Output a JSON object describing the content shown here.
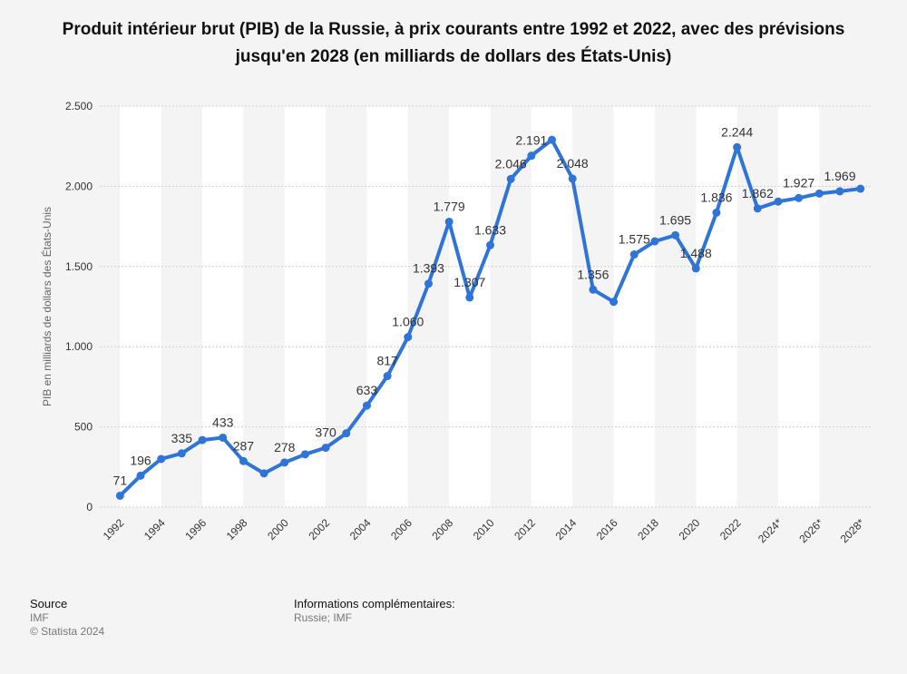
{
  "chart_data": {
    "type": "line",
    "title": "Produit intérieur brut (PIB) de la Russie, à prix courants entre 1992 et 2022, avec des prévisions jusqu'en 2028 (en milliards de dollars des États-Unis)",
    "y_label": "PIB en milliards de dollars des États-Unis",
    "categories": [
      "1992",
      null,
      "1994",
      null,
      "1996",
      null,
      "1998",
      null,
      "2000",
      null,
      "2002",
      null,
      "2004",
      null,
      "2006",
      null,
      "2008",
      null,
      "2010",
      null,
      "2012",
      null,
      "2014",
      null,
      "2016",
      null,
      "2018",
      null,
      "2020",
      null,
      "2022",
      null,
      "2024*",
      null,
      "2026*",
      null,
      "2028*"
    ],
    "series": [
      {
        "name": "PIB",
        "color": "#2f74d9",
        "values": [
          71,
          196,
          300,
          335,
          418,
          433,
          287,
          210,
          278,
          329,
          370,
          460,
          633,
          817,
          1060,
          1393,
          1779,
          1307,
          1633,
          2046,
          2191,
          2290,
          2048,
          1356,
          1280,
          1575,
          1657,
          1695,
          1488,
          1836,
          2244,
          1862,
          1905,
          1927,
          1955,
          1969,
          1985
        ],
        "value_labels": [
          "71",
          "196",
          null,
          "335",
          null,
          "433",
          "287",
          null,
          "278",
          null,
          "370",
          null,
          "633",
          "817",
          "1.060",
          "1.393",
          "1.779",
          "1.307",
          "1.633",
          "2.046",
          "2.191",
          null,
          "2.048",
          "1.356",
          null,
          "1.575",
          null,
          "1.695",
          "1.488",
          "1.836",
          "2.244",
          "1.862",
          null,
          "1.927",
          null,
          "1.969",
          null
        ]
      }
    ],
    "ylim": [
      0,
      2500
    ],
    "yticks": [
      0,
      500,
      {
        "value": 1000,
        "label": "1.000"
      },
      {
        "value": 1500,
        "label": "1.500"
      },
      {
        "value": 2000,
        "label": "2.000"
      },
      {
        "value": 2500,
        "label": "2.500"
      }
    ],
    "grid": true
  },
  "footer": {
    "source_title": "Source",
    "source": "IMF",
    "copyright": "© Statista 2024",
    "info_title": "Informations complémentaires:",
    "info": "Russie; IMF"
  }
}
